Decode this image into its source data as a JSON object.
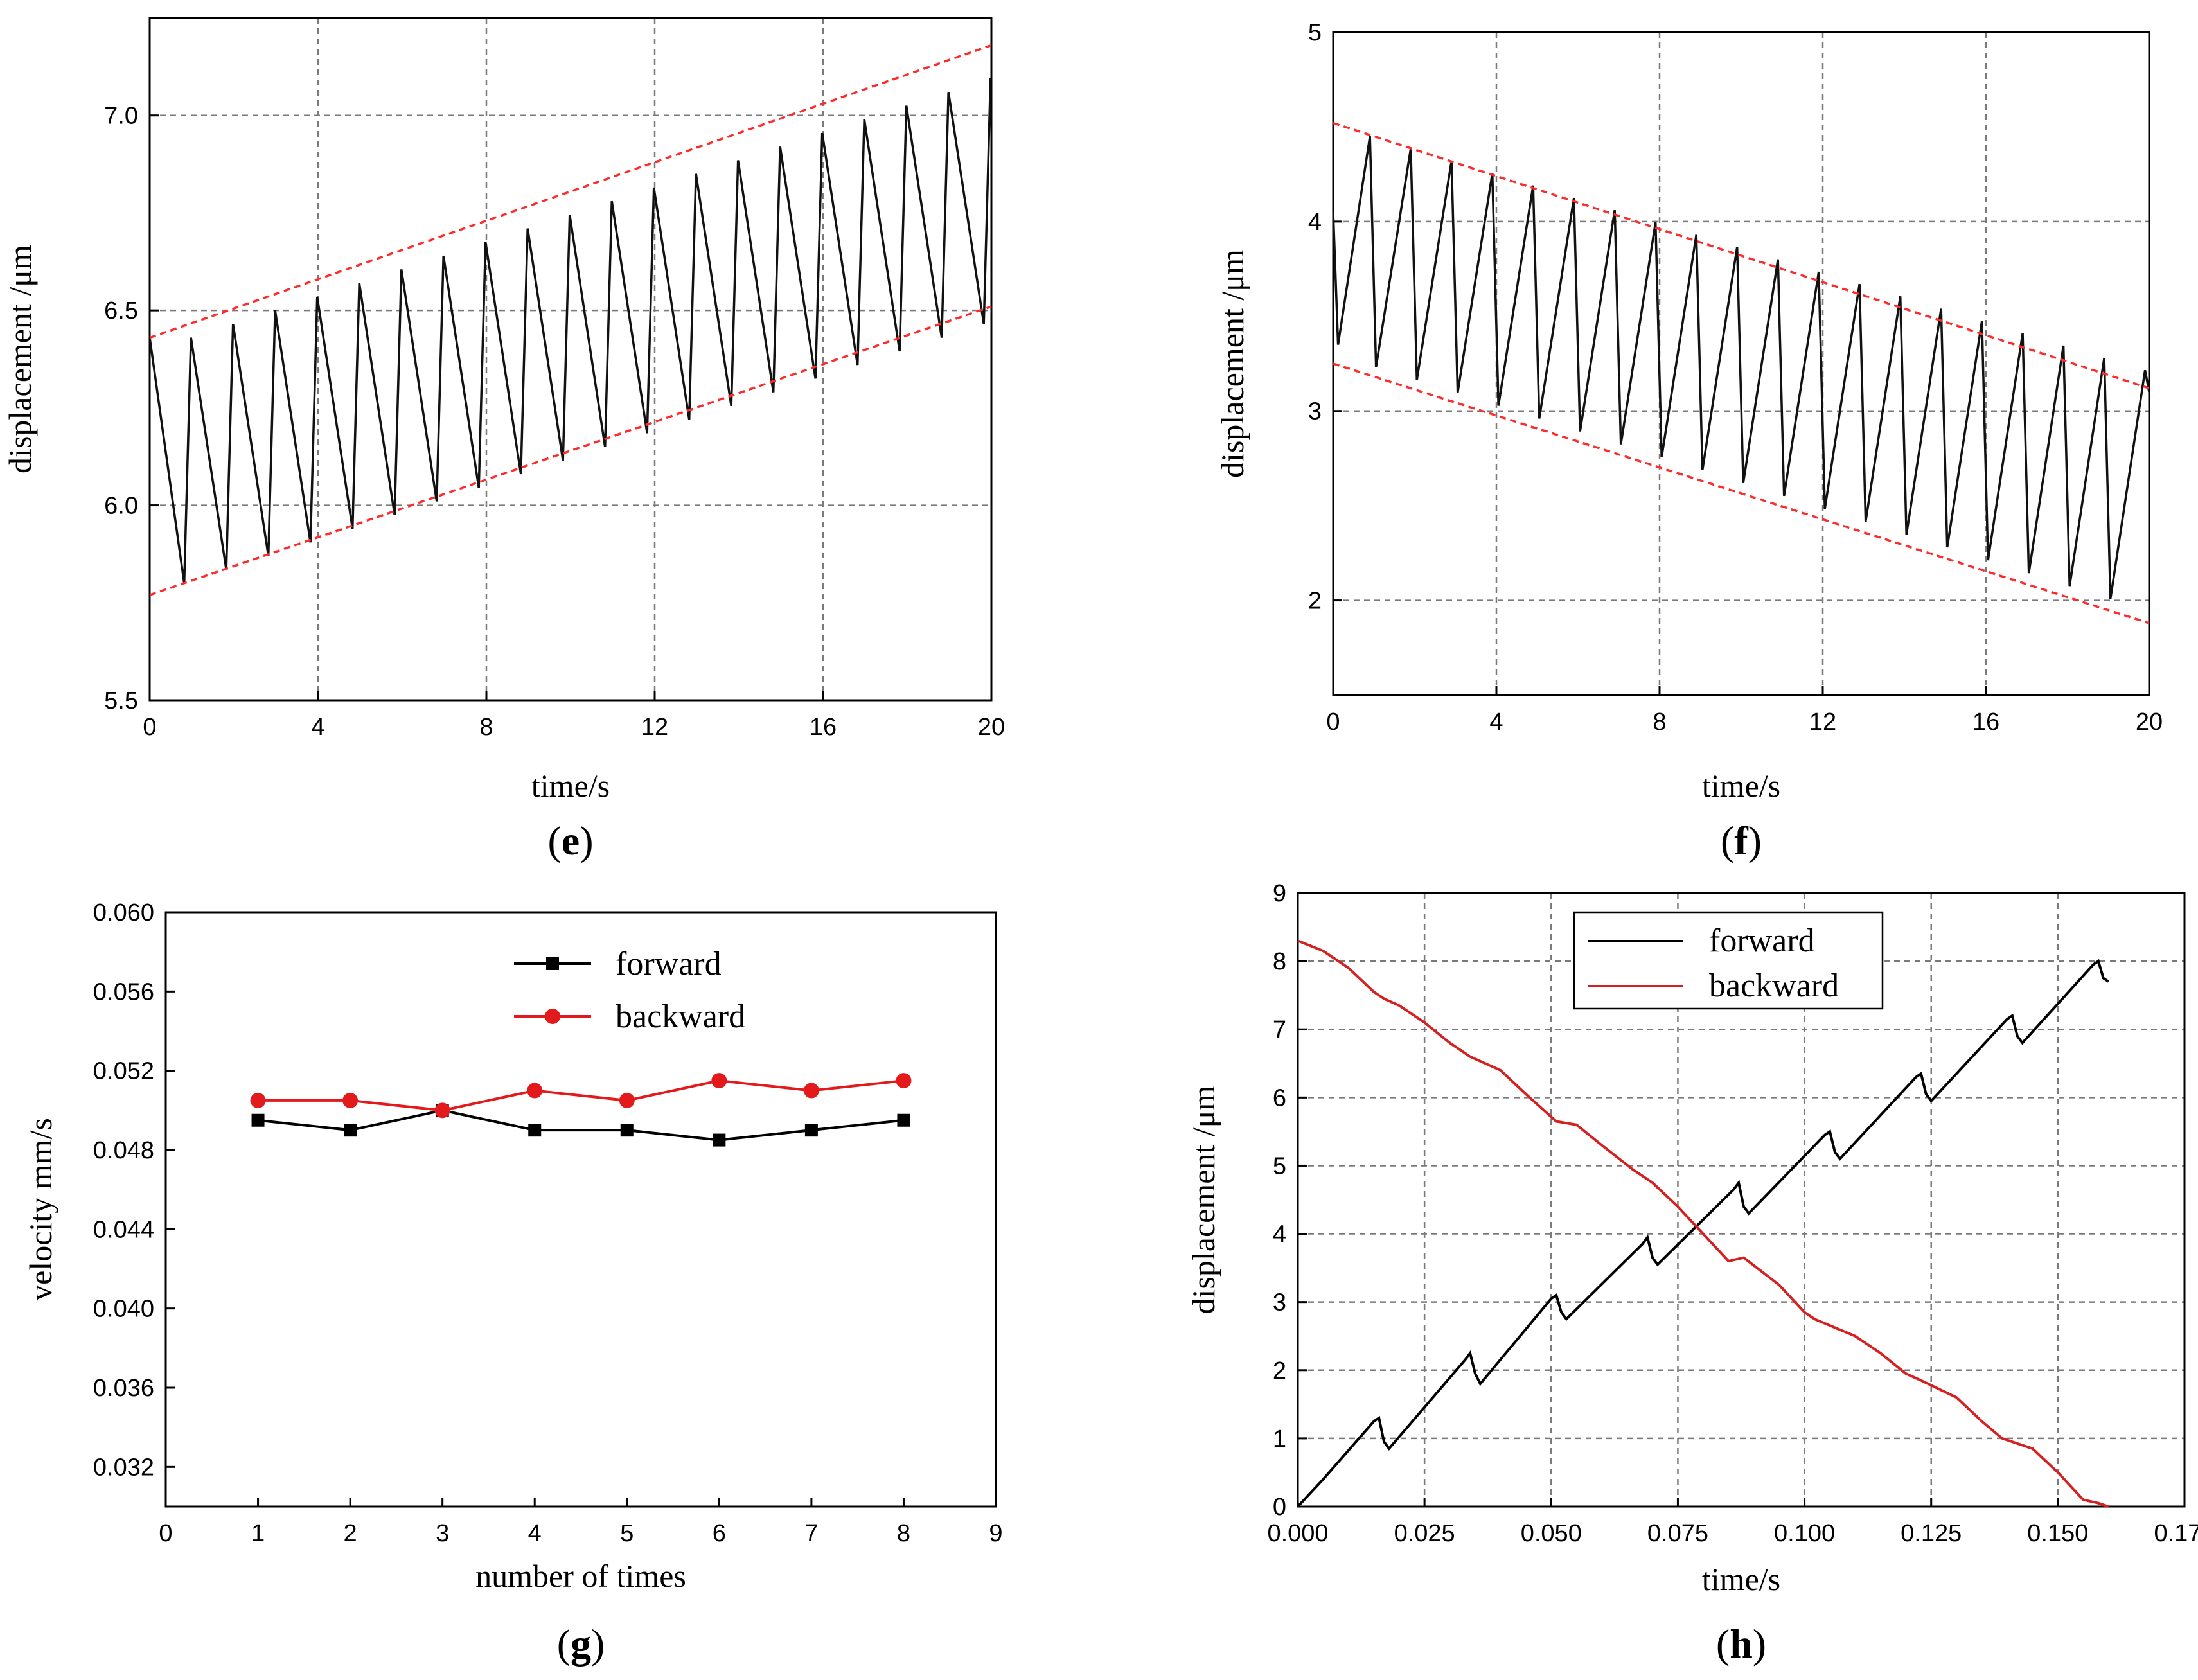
{
  "chart_data": [
    {
      "type": "line",
      "panel_label": {
        "open": "(",
        "letter": "e",
        "close": ")"
      },
      "xlabel": "time/s",
      "ylabel": "displacement /μm",
      "xlim": [
        0,
        20
      ],
      "ylim": [
        5.5,
        7.25
      ],
      "xticks": [
        0,
        4,
        8,
        12,
        16,
        20
      ],
      "xtick_labels": [
        "0",
        "4",
        "8",
        "12",
        "16",
        "20"
      ],
      "yticks": [
        5.5,
        6.0,
        6.5,
        7.0
      ],
      "ytick_labels": [
        "5.5",
        "6.0",
        "6.5",
        "7.0"
      ],
      "grid_x": [
        4,
        8,
        12,
        16
      ],
      "grid_y": [
        6.0,
        6.5,
        7.0
      ],
      "envelope": [
        {
          "name": "upper bound",
          "x": [
            0,
            20
          ],
          "y": [
            6.43,
            7.18
          ]
        },
        {
          "name": "lower bound",
          "x": [
            0,
            20
          ],
          "y": [
            5.77,
            6.51
          ]
        }
      ],
      "series": [
        {
          "name": "displacement",
          "color": "#111111",
          "periods": 20,
          "period_s": 1.0,
          "start": 6.43,
          "peak_step": 0.035,
          "trough_start": 5.8,
          "trough_step": 0.035
        }
      ]
    },
    {
      "type": "line",
      "panel_label": {
        "open": "(",
        "letter": "f",
        "close": ")"
      },
      "xlabel": "time/s",
      "ylabel": "displacement /μm",
      "xlim": [
        0,
        20
      ],
      "ylim": [
        1.5,
        5.0
      ],
      "xticks": [
        0,
        4,
        8,
        12,
        16,
        20
      ],
      "xtick_labels": [
        "0",
        "4",
        "8",
        "12",
        "16",
        "20"
      ],
      "yticks": [
        2,
        3,
        4,
        5
      ],
      "ytick_labels": [
        "2",
        "3",
        "4",
        "5"
      ],
      "grid_x": [
        4,
        8,
        12,
        16
      ],
      "grid_y": [
        2,
        3,
        4
      ],
      "envelope": [
        {
          "name": "upper bound",
          "x": [
            0,
            20
          ],
          "y": [
            4.52,
            3.12
          ]
        },
        {
          "name": "lower bound",
          "x": [
            0,
            20
          ],
          "y": [
            3.25,
            1.88
          ]
        }
      ],
      "series": [
        {
          "name": "displacement",
          "color": "#111111",
          "periods": 20,
          "period_s": 1.0,
          "start": 4.05,
          "peak_start": 4.45,
          "peak_step": -0.065,
          "trough_start": 3.3,
          "trough_step": -0.068
        }
      ]
    },
    {
      "type": "line",
      "panel_label": {
        "open": "(",
        "letter": "g",
        "close": ")"
      },
      "xlabel": "number of times",
      "ylabel": "velocity mm/s",
      "xlim": [
        0,
        9
      ],
      "ylim": [
        0.03,
        0.06
      ],
      "xticks": [
        0,
        1,
        2,
        3,
        4,
        5,
        6,
        7,
        8,
        9
      ],
      "xtick_labels": [
        "0",
        "1",
        "2",
        "3",
        "4",
        "5",
        "6",
        "7",
        "8",
        "9"
      ],
      "yticks": [
        0.032,
        0.036,
        0.04,
        0.044,
        0.048,
        0.052,
        0.056,
        0.06
      ],
      "ytick_labels": [
        "0.032",
        "0.036",
        "0.040",
        "0.044",
        "0.048",
        "0.052",
        "0.056",
        "0.060"
      ],
      "legend": "top-center",
      "categories": [
        1,
        2,
        3,
        4,
        5,
        6,
        7,
        8
      ],
      "series": [
        {
          "name": "forward",
          "color": "#000000",
          "marker": "square",
          "values": [
            0.0495,
            0.049,
            0.05,
            0.049,
            0.049,
            0.0485,
            0.049,
            0.0495
          ]
        },
        {
          "name": "backward",
          "color": "#e31a1c",
          "marker": "circle",
          "values": [
            0.0505,
            0.0505,
            0.05,
            0.051,
            0.0505,
            0.0515,
            0.051,
            0.0515
          ]
        }
      ]
    },
    {
      "type": "line",
      "panel_label": {
        "open": "(",
        "letter": "h",
        "close": ")"
      },
      "xlabel": "time/s",
      "ylabel": "displacement /μm",
      "xlim": [
        0,
        0.175
      ],
      "ylim": [
        0,
        9
      ],
      "xticks": [
        0,
        0.025,
        0.05,
        0.075,
        0.1,
        0.125,
        0.15,
        0.175
      ],
      "xtick_labels": [
        "0.000",
        "0.025",
        "0.050",
        "0.075",
        "0.100",
        "0.125",
        "0.150",
        "0.175"
      ],
      "yticks": [
        0,
        1,
        2,
        3,
        4,
        5,
        6,
        7,
        8,
        9
      ],
      "ytick_labels": [
        "0",
        "1",
        "2",
        "3",
        "4",
        "5",
        "6",
        "7",
        "8",
        "9"
      ],
      "legend": "top-left",
      "series": [
        {
          "name": "forward",
          "color": "#000000",
          "x": [
            0.0,
            0.005,
            0.015,
            0.016,
            0.017,
            0.018,
            0.033,
            0.034,
            0.035,
            0.036,
            0.05,
            0.051,
            0.052,
            0.053,
            0.068,
            0.069,
            0.07,
            0.071,
            0.086,
            0.087,
            0.088,
            0.089,
            0.104,
            0.105,
            0.106,
            0.107,
            0.122,
            0.123,
            0.124,
            0.125,
            0.14,
            0.141,
            0.142,
            0.143,
            0.157,
            0.158,
            0.159,
            0.16
          ],
          "y": [
            0.0,
            0.4,
            1.25,
            1.3,
            0.95,
            0.85,
            2.15,
            2.25,
            1.95,
            1.8,
            3.05,
            3.1,
            2.85,
            2.75,
            3.85,
            3.95,
            3.65,
            3.55,
            4.65,
            4.75,
            4.4,
            4.3,
            5.45,
            5.5,
            5.2,
            5.1,
            6.3,
            6.35,
            6.05,
            5.95,
            7.15,
            7.2,
            6.9,
            6.8,
            7.95,
            8.0,
            7.75,
            7.7
          ]
        },
        {
          "name": "backward",
          "color": "#d62020",
          "x": [
            0.0,
            0.005,
            0.01,
            0.015,
            0.017,
            0.02,
            0.025,
            0.03,
            0.034,
            0.04,
            0.045,
            0.051,
            0.055,
            0.06,
            0.066,
            0.07,
            0.075,
            0.08,
            0.085,
            0.088,
            0.095,
            0.1,
            0.102,
            0.11,
            0.115,
            0.12,
            0.123,
            0.13,
            0.135,
            0.139,
            0.145,
            0.15,
            0.155,
            0.158,
            0.16
          ],
          "y": [
            8.3,
            8.15,
            7.9,
            7.55,
            7.45,
            7.35,
            7.1,
            6.8,
            6.6,
            6.4,
            6.05,
            5.65,
            5.6,
            5.3,
            4.95,
            4.75,
            4.4,
            4.0,
            3.6,
            3.65,
            3.25,
            2.85,
            2.75,
            2.5,
            2.25,
            1.95,
            1.85,
            1.6,
            1.25,
            1.0,
            0.85,
            0.5,
            0.1,
            0.05,
            0.0
          ]
        }
      ]
    }
  ]
}
